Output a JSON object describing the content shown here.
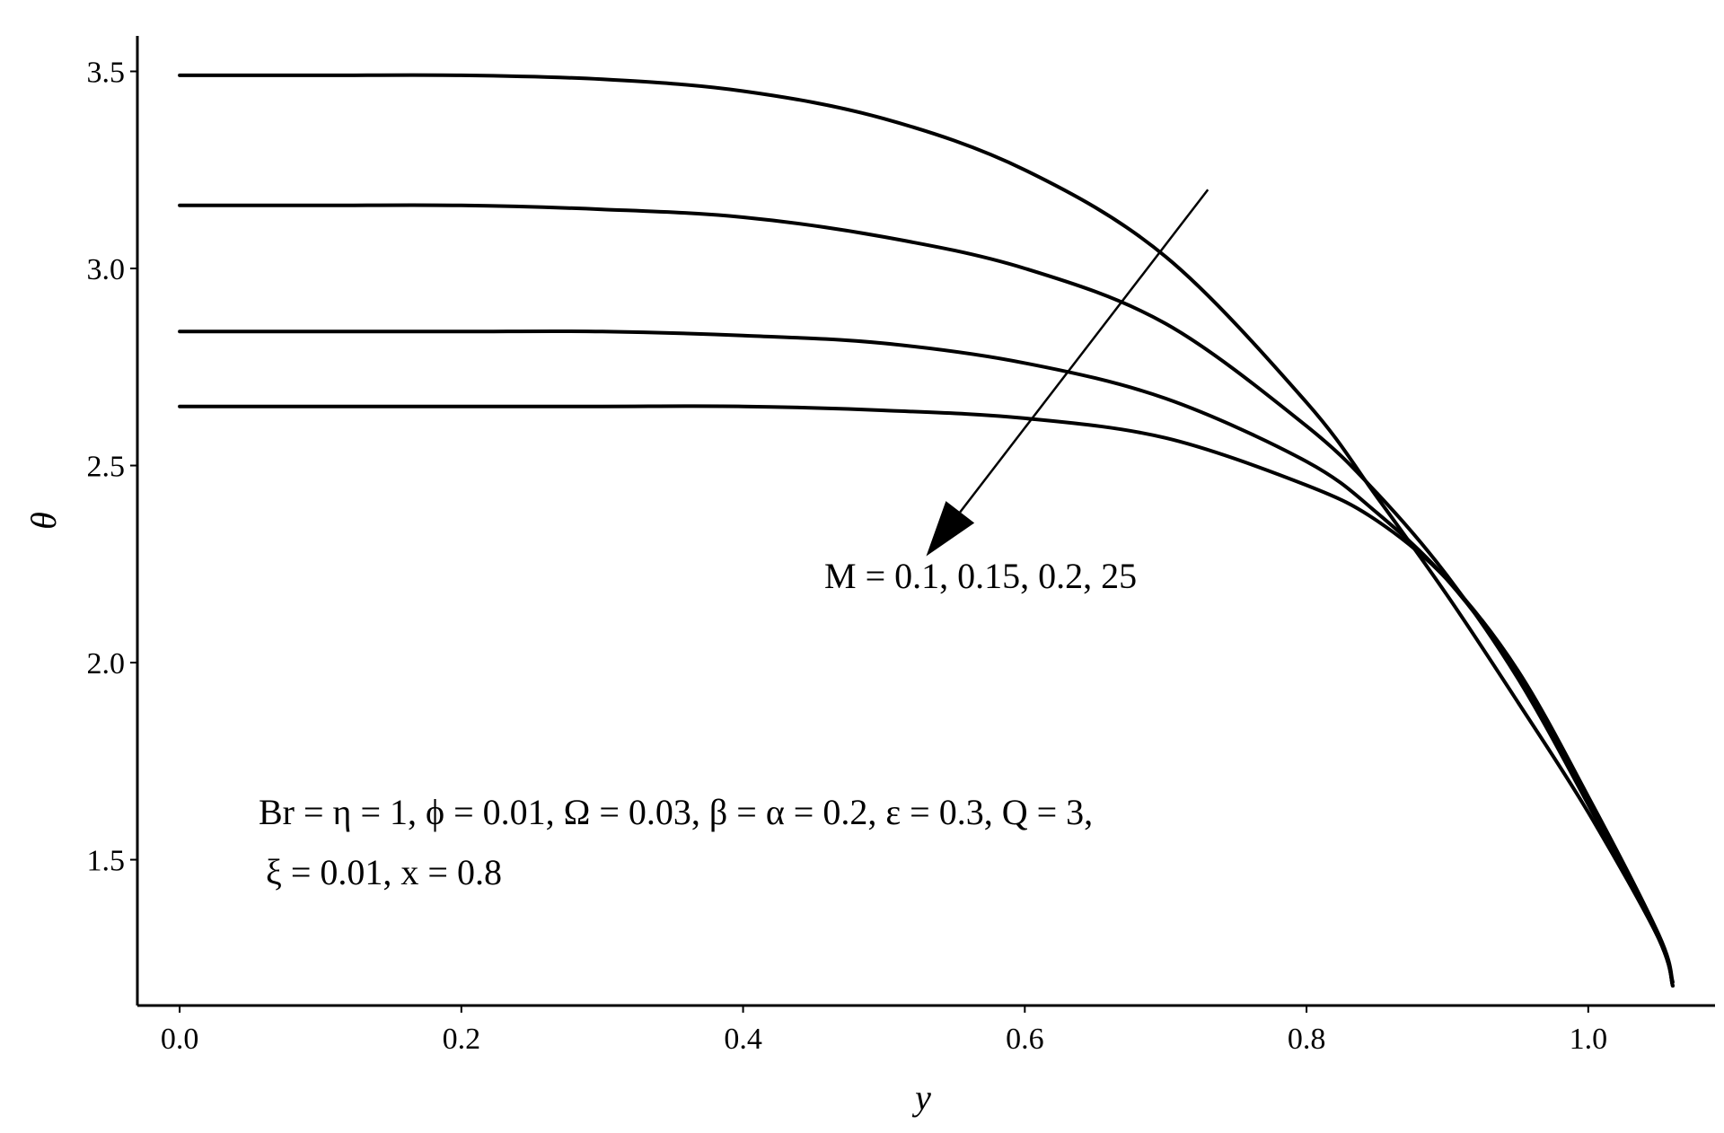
{
  "chart_data": {
    "type": "line",
    "xlabel": "y",
    "ylabel": "θ",
    "xlim": [
      -0.03,
      1.09
    ],
    "ylim": [
      1.13,
      3.59
    ],
    "x_ticks": [
      "0.0",
      "0.2",
      "0.4",
      "0.6",
      "0.8",
      "1.0"
    ],
    "x_tick_values": [
      0.0,
      0.2,
      0.4,
      0.6,
      0.8,
      1.0
    ],
    "y_ticks": [
      "1.5",
      "2.0",
      "2.5",
      "3.0",
      "3.5"
    ],
    "y_tick_values": [
      1.5,
      2.0,
      2.5,
      3.0,
      3.5
    ],
    "grid": false,
    "x": [
      0.0,
      0.1,
      0.2,
      0.3,
      0.4,
      0.5,
      0.6,
      0.7,
      0.8,
      0.85,
      0.9,
      0.95,
      1.0,
      1.05,
      1.06
    ],
    "series": [
      {
        "values": [
          3.49,
          3.49,
          3.49,
          3.48,
          3.45,
          3.38,
          3.25,
          3.03,
          2.66,
          2.42,
          2.17,
          1.9,
          1.62,
          1.3,
          1.18
        ]
      },
      {
        "values": [
          3.16,
          3.16,
          3.16,
          3.15,
          3.13,
          3.08,
          3.0,
          2.86,
          2.6,
          2.43,
          2.22,
          1.96,
          1.64,
          1.3,
          1.18
        ]
      },
      {
        "values": [
          2.84,
          2.84,
          2.84,
          2.84,
          2.83,
          2.81,
          2.76,
          2.67,
          2.51,
          2.38,
          2.21,
          1.97,
          1.65,
          1.3,
          1.18
        ]
      },
      {
        "values": [
          2.65,
          2.65,
          2.65,
          2.65,
          2.65,
          2.64,
          2.62,
          2.57,
          2.45,
          2.36,
          2.21,
          1.98,
          1.66,
          1.31,
          1.19
        ]
      }
    ],
    "annotations": {
      "arrow_label": "M = 0.1, 0.15, 0.2, 25",
      "params_line1": "Br = η = 1, ϕ = 0.01, Ω = 0.03, β = α = 0.2, ε = 0.3, Q = 3,",
      "params_line2": "ξ = 0.01, x = 0.8"
    },
    "arrow": {
      "from": [
        0.73,
        3.2
      ],
      "to": [
        0.53,
        2.27
      ]
    }
  }
}
